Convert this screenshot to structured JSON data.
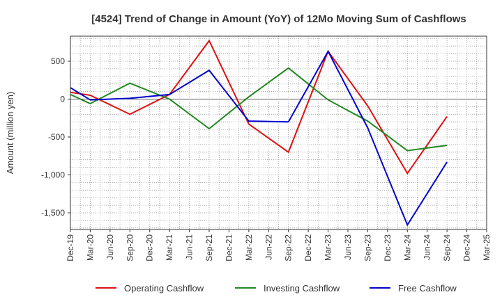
{
  "chart_data": {
    "type": "line",
    "title": "[4524]  Trend of Change in Amount (YoY) of 12Mo Moving Sum of Cashflows",
    "xlabel": "",
    "ylabel": "Amount (million yen)",
    "ylim": [
      -1720,
      830
    ],
    "yticks": [
      500,
      0,
      -500,
      -1000,
      -1500
    ],
    "ytick_labels": [
      "500",
      "0",
      "-500",
      "-1,000",
      "-1,500"
    ],
    "categories": [
      "Dec-19",
      "Mar-20",
      "Jun-20",
      "Sep-20",
      "Dec-20",
      "Mar-21",
      "Jun-21",
      "Sep-21",
      "Dec-21",
      "Mar-22",
      "Jun-22",
      "Sep-22",
      "Dec-22",
      "Mar-23",
      "Jun-23",
      "Sep-23",
      "Dec-23",
      "Mar-24",
      "Jun-24",
      "Sep-24",
      "Dec-24",
      "Mar-25"
    ],
    "x": [
      "Dec-19",
      "Mar-20",
      "Sep-20",
      "Mar-21",
      "Sep-21",
      "Mar-22",
      "Sep-22",
      "Mar-23",
      "Sep-23",
      "Mar-24",
      "Sep-24"
    ],
    "series": [
      {
        "name": "Operating Cashflow",
        "color": "#dd1111",
        "values": [
          90,
          50,
          -200,
          60,
          770,
          -330,
          -700,
          630,
          -90,
          -980,
          -230
        ]
      },
      {
        "name": "Investing Cashflow",
        "color": "#228822",
        "values": [
          60,
          -60,
          210,
          0,
          -390,
          30,
          410,
          -10,
          -290,
          -680,
          -610
        ]
      },
      {
        "name": "Free Cashflow",
        "color": "#0000cc",
        "values": [
          150,
          -10,
          10,
          60,
          380,
          -290,
          -300,
          630,
          -380,
          -1660,
          -830
        ]
      }
    ],
    "grid": true,
    "legend": "bottom"
  }
}
